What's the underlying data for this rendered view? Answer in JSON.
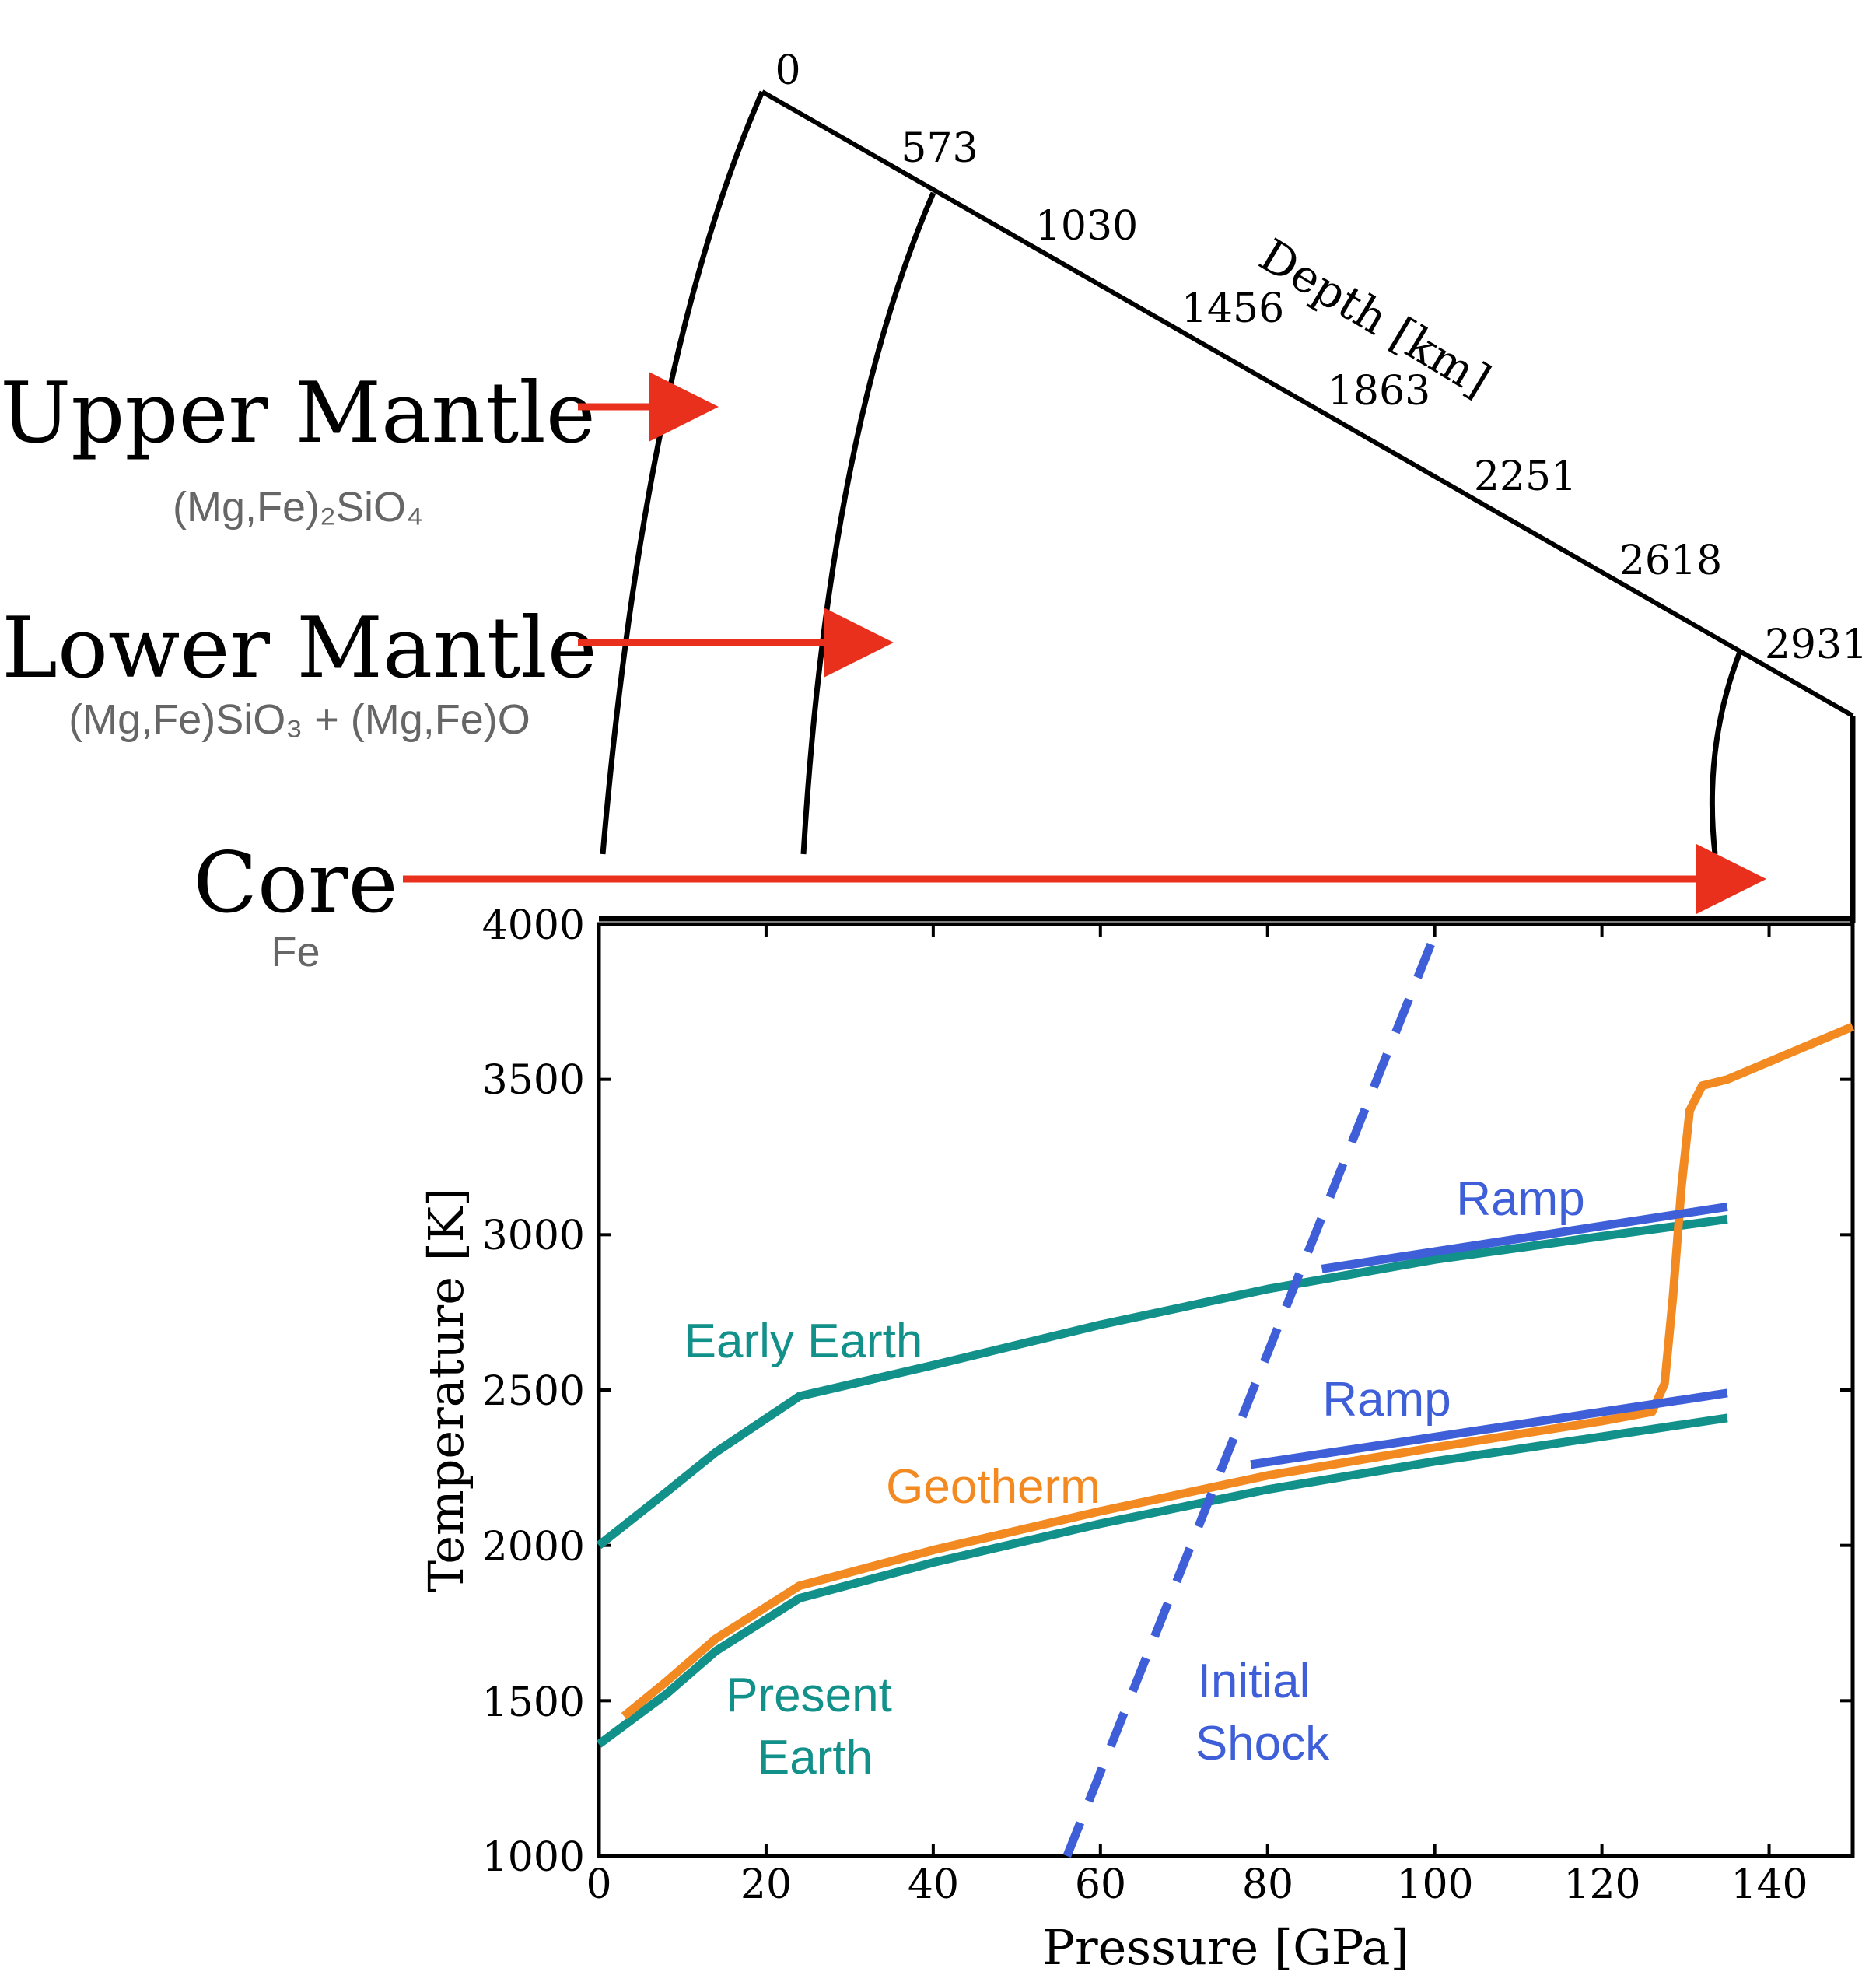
{
  "diagram": {
    "depth_axis_label": "Depth [km]",
    "depth_ticks": [
      "0",
      "573",
      "1030",
      "1456",
      "1863",
      "2251",
      "2618",
      "2931"
    ],
    "layers": [
      {
        "name": "Upper Mantle",
        "formula": "(Mg,Fe)₂SiO₄"
      },
      {
        "name": "Lower Mantle",
        "formula": "(Mg,Fe)SiO₃ + (Mg,Fe)O"
      },
      {
        "name": "Core",
        "formula": "Fe"
      }
    ],
    "colors": {
      "arrow": "#e8301c",
      "label_text": "#000000",
      "formula_text": "#666666",
      "boundary": "#000000"
    }
  },
  "chart_data": {
    "type": "line",
    "xlabel": "Pressure [GPa]",
    "ylabel": "Temperature [K]",
    "xlim": [
      0,
      150
    ],
    "ylim": [
      1000,
      4000
    ],
    "xticks": [
      "0",
      "20",
      "40",
      "60",
      "80",
      "100",
      "120",
      "140"
    ],
    "yticks": [
      "1000",
      "1500",
      "2000",
      "2500",
      "3000",
      "3500",
      "4000"
    ],
    "grid": false,
    "annotations": [
      {
        "text": "Early Earth",
        "color": "#12908a"
      },
      {
        "text": "Geotherm",
        "color": "#f28a21"
      },
      {
        "text": "Present",
        "color": "#12908a"
      },
      {
        "text": "Earth",
        "color": "#12908a"
      },
      {
        "text": "Ramp",
        "color": "#3f5fd9"
      },
      {
        "text": "Ramp",
        "color": "#3f5fd9"
      },
      {
        "text": "Initial",
        "color": "#3f5fd9"
      },
      {
        "text": "Shock",
        "color": "#3f5fd9"
      }
    ],
    "series": [
      {
        "color": "#12908a",
        "style": "solid",
        "x": [
          0,
          8,
          14,
          24,
          40,
          60,
          80,
          100,
          120,
          135
        ],
        "y": [
          2000,
          2170,
          2300,
          2480,
          2580,
          2710,
          2825,
          2920,
          2995,
          3050
        ]
      },
      {
        "color": "#12908a",
        "style": "solid",
        "x": [
          0,
          8,
          14,
          24,
          40,
          60,
          80,
          100,
          120,
          135
        ],
        "y": [
          1360,
          1520,
          1660,
          1830,
          1945,
          2070,
          2180,
          2270,
          2350,
          2410
        ]
      },
      {
        "color": "#f28a21",
        "style": "solid",
        "x": [
          3,
          8,
          14,
          24,
          40,
          60,
          80,
          100,
          120,
          126,
          127.5,
          128.5,
          129.5,
          130.5,
          132,
          135,
          150
        ],
        "y": [
          1450,
          1560,
          1700,
          1870,
          1985,
          2110,
          2225,
          2315,
          2400,
          2430,
          2520,
          2800,
          3150,
          3400,
          3480,
          3500,
          3670
        ]
      },
      {
        "color": "#3f5fd9",
        "style": "dashed",
        "x": [
          56,
          100.5
        ],
        "y": [
          1000,
          4000
        ]
      },
      {
        "color": "#3f5fd9",
        "style": "solid",
        "x": [
          86.5,
          135
        ],
        "y": [
          2890,
          3090
        ]
      },
      {
        "color": "#3f5fd9",
        "style": "solid",
        "x": [
          78,
          135
        ],
        "y": [
          2260,
          2490
        ]
      }
    ]
  }
}
